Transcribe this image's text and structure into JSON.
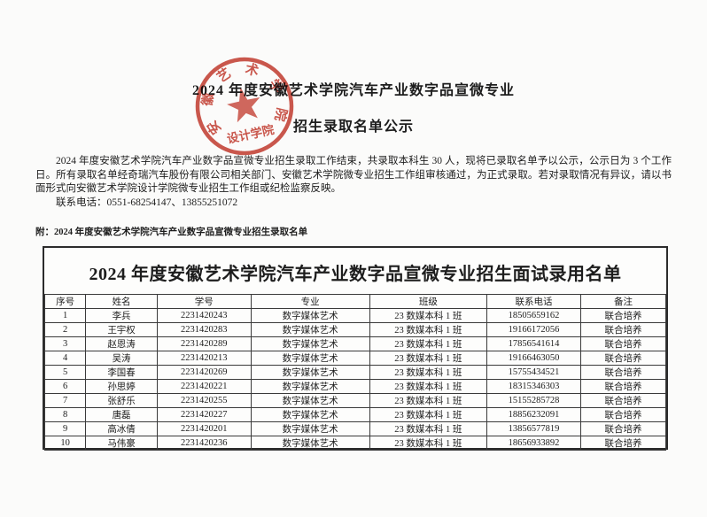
{
  "page": {
    "title_line1": "2024 年度安徽艺术学院汽车产业数字品宣微专业",
    "title_line2": "招生录取名单公示",
    "body_paragraph": "2024 年度安徽艺术学院汽车产业数字品宣微专业招生录取工作结束，共录取本科生 30 人，现将已录取名单予以公示，公示日为 3 个工作日。所有录取名单经奇瑞汽车股份有限公司相关部门、安徽艺术学院微专业招生工作组审核通过，为正式录取。若对录取情况有异议，请以书面形式向安徽艺术学院设计学院微专业招生工作组或纪检监察反映。",
    "contact_line": "联系电话：0551-68254147、13855251072",
    "attachment_line": "附：2024 年度安徽艺术学院汽车产业数字品宣微专业招生录取名单"
  },
  "seal": {
    "ring_text": "安徽艺术学院",
    "inner_text": "设计学院",
    "color": "#c43a2e"
  },
  "table": {
    "title": "2024 年度安徽艺术学院汽车产业数字品宣微专业招生面试录用名单",
    "headers": [
      "序号",
      "姓名",
      "学号",
      "专业",
      "班级",
      "联系电话",
      "备注"
    ],
    "column_keys": [
      "index",
      "name",
      "student-id",
      "major",
      "class",
      "phone",
      "note"
    ],
    "rows": [
      [
        "1",
        "李兵",
        "2231420243",
        "数字媒体艺术",
        "23 数媒本科 1 班",
        "18505659162",
        "联合培养"
      ],
      [
        "2",
        "王宇权",
        "2231420283",
        "数字媒体艺术",
        "23 数媒本科 1 班",
        "19166172056",
        "联合培养"
      ],
      [
        "3",
        "赵恩涛",
        "2231420289",
        "数字媒体艺术",
        "23 数媒本科 1 班",
        "17856541614",
        "联合培养"
      ],
      [
        "4",
        "吴涛",
        "2231420213",
        "数字媒体艺术",
        "23 数媒本科 1 班",
        "19166463050",
        "联合培养"
      ],
      [
        "5",
        "李国春",
        "2231420269",
        "数字媒体艺术",
        "23 数媒本科 1 班",
        "15755434521",
        "联合培养"
      ],
      [
        "6",
        "孙思婷",
        "2231420221",
        "数字媒体艺术",
        "23 数媒本科 1 班",
        "18315346303",
        "联合培养"
      ],
      [
        "7",
        "张舒乐",
        "2231420255",
        "数字媒体艺术",
        "23 数媒本科 1 班",
        "15155285728",
        "联合培养"
      ],
      [
        "8",
        "唐磊",
        "2231420227",
        "数字媒体艺术",
        "23 数媒本科 1 班",
        "18856232091",
        "联合培养"
      ],
      [
        "9",
        "高冰倩",
        "2231420201",
        "数字媒体艺术",
        "23 数媒本科 1 班",
        "13856577819",
        "联合培养"
      ],
      [
        "10",
        "马伟豪",
        "2231420236",
        "数字媒体艺术",
        "23 数媒本科 1 班",
        "18656933892",
        "联合培养"
      ]
    ]
  }
}
